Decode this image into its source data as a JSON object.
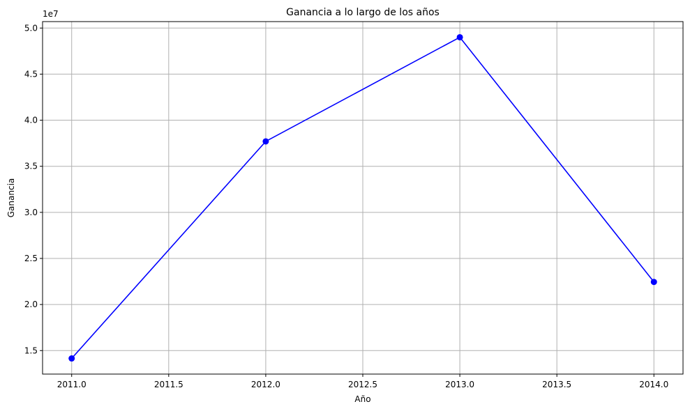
{
  "chart_data": {
    "type": "line",
    "title": "Ganancia a lo largo de los años",
    "xlabel": "Año",
    "ylabel": "Ganancia",
    "y_offset_label": "1e7",
    "xlim": [
      2010.85,
      2014.15
    ],
    "ylim": [
      12450000,
      50700000
    ],
    "x_ticks": [
      2011.0,
      2011.5,
      2012.0,
      2012.5,
      2013.0,
      2013.5,
      2014.0
    ],
    "x_tick_labels": [
      "2011.0",
      "2011.5",
      "2012.0",
      "2012.5",
      "2013.0",
      "2013.5",
      "2014.0"
    ],
    "y_ticks": [
      15000000,
      20000000,
      25000000,
      30000000,
      35000000,
      40000000,
      45000000,
      50000000
    ],
    "y_tick_labels": [
      "1.5",
      "2.0",
      "2.5",
      "3.0",
      "3.5",
      "4.0",
      "4.5",
      "5.0"
    ],
    "grid": true,
    "series": [
      {
        "color": "#0000ff",
        "marker": "circle",
        "x": [
          2011,
          2012,
          2013,
          2014
        ],
        "y": [
          14150000,
          37700000,
          49000000,
          22450000
        ]
      }
    ]
  }
}
